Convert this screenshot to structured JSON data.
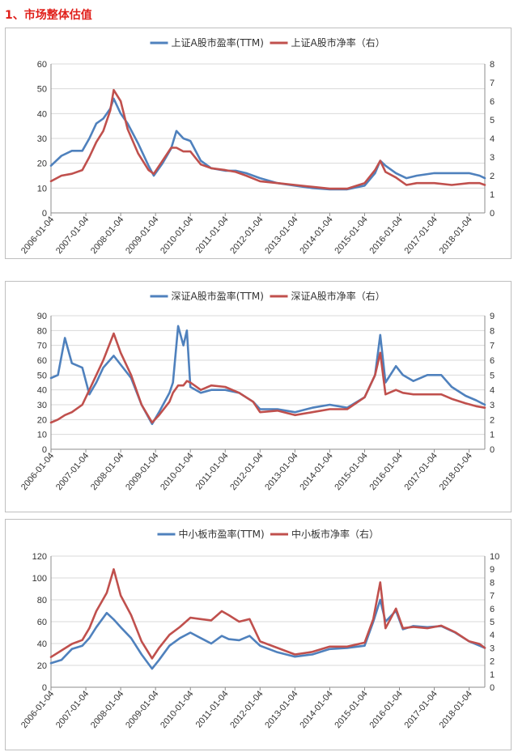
{
  "page": {
    "section_title": "1、市场整体估值"
  },
  "colors": {
    "pe": "#4f81bd",
    "pb": "#c0504d",
    "grid": "#d9d9d9",
    "title": "#e0201b"
  },
  "chart_data": [
    {
      "type": "line",
      "legend_placement": "top",
      "grid": true,
      "x_tick_labels": [
        "2006-01-04",
        "2007-01-04",
        "2008-01-04",
        "2009-01-04",
        "2010-01-04",
        "2011-01-04",
        "2012-01-04",
        "2013-01-04",
        "2014-01-04",
        "2015-01-04",
        "2016-01-04",
        "2017-01-04",
        "2018-01-04"
      ],
      "xlim": [
        2006.0,
        2018.45
      ],
      "y_left": {
        "ylim": [
          0,
          60
        ],
        "ticks": [
          0,
          10,
          20,
          30,
          40,
          50,
          60
        ]
      },
      "y_right": {
        "ylim": [
          0,
          8
        ],
        "ticks": [
          0,
          1,
          2,
          3,
          4,
          5,
          6,
          7,
          8
        ]
      },
      "series": [
        {
          "name": "上证A股市盈率(TTM)",
          "axis": "left",
          "x": [
            2006.0,
            2006.3,
            2006.6,
            2006.9,
            2007.1,
            2007.3,
            2007.5,
            2007.7,
            2007.8,
            2008.0,
            2008.2,
            2008.5,
            2008.8,
            2008.95,
            2009.2,
            2009.45,
            2009.6,
            2009.8,
            2010.0,
            2010.3,
            2010.6,
            2011.0,
            2011.3,
            2011.6,
            2012.0,
            2012.5,
            2013.0,
            2013.5,
            2014.0,
            2014.5,
            2015.0,
            2015.3,
            2015.45,
            2015.6,
            2015.9,
            2016.2,
            2016.5,
            2017.0,
            2017.5,
            2018.0,
            2018.3,
            2018.45
          ],
          "y": [
            19,
            23,
            25,
            25,
            30,
            36,
            38,
            42,
            46,
            40,
            36,
            28,
            19,
            15,
            20,
            26,
            33,
            30,
            29,
            21,
            18,
            17,
            17,
            16,
            14,
            12,
            11,
            10,
            9.5,
            9.5,
            11,
            16,
            21,
            19,
            16,
            14,
            15,
            16,
            16,
            16,
            15,
            14
          ]
        },
        {
          "name": "上证A股市净率（右）",
          "axis": "right",
          "x": [
            2006.0,
            2006.3,
            2006.6,
            2006.9,
            2007.1,
            2007.3,
            2007.5,
            2007.7,
            2007.8,
            2008.0,
            2008.2,
            2008.5,
            2008.8,
            2008.95,
            2009.2,
            2009.45,
            2009.6,
            2009.8,
            2010.0,
            2010.3,
            2010.6,
            2011.0,
            2011.3,
            2011.6,
            2012.0,
            2012.5,
            2013.0,
            2013.5,
            2014.0,
            2014.5,
            2015.0,
            2015.3,
            2015.45,
            2015.6,
            2015.9,
            2016.2,
            2016.5,
            2017.0,
            2017.5,
            2018.0,
            2018.3,
            2018.45
          ],
          "y": [
            1.7,
            2.0,
            2.1,
            2.3,
            3.0,
            3.8,
            4.4,
            5.5,
            6.6,
            6.0,
            4.5,
            3.2,
            2.3,
            2.1,
            2.8,
            3.5,
            3.5,
            3.3,
            3.3,
            2.6,
            2.4,
            2.3,
            2.2,
            2.0,
            1.7,
            1.6,
            1.5,
            1.4,
            1.3,
            1.3,
            1.6,
            2.3,
            2.8,
            2.2,
            1.9,
            1.5,
            1.6,
            1.6,
            1.5,
            1.6,
            1.6,
            1.5
          ]
        }
      ]
    },
    {
      "type": "line",
      "legend_placement": "top",
      "grid": true,
      "x_tick_labels": [
        "2006-01-04",
        "2007-01-04",
        "2008-01-04",
        "2009-01-04",
        "2010-01-04",
        "2011-01-04",
        "2012-01-04",
        "2013-01-04",
        "2014-01-04",
        "2015-01-04",
        "2016-01-04",
        "2017-01-04",
        "2018-01-04"
      ],
      "xlim": [
        2006.0,
        2018.45
      ],
      "y_left": {
        "ylim": [
          0,
          90
        ],
        "ticks": [
          0,
          10,
          20,
          30,
          40,
          50,
          60,
          70,
          80,
          90
        ]
      },
      "y_right": {
        "ylim": [
          0,
          9
        ],
        "ticks": [
          0,
          1,
          2,
          3,
          4,
          5,
          6,
          7,
          8,
          9
        ]
      },
      "series": [
        {
          "name": "深证A股市盈率(TTM)",
          "axis": "left",
          "x": [
            2006.0,
            2006.2,
            2006.4,
            2006.6,
            2006.9,
            2007.1,
            2007.3,
            2007.5,
            2007.8,
            2008.0,
            2008.3,
            2008.6,
            2008.9,
            2009.1,
            2009.4,
            2009.5,
            2009.65,
            2009.8,
            2009.9,
            2010.0,
            2010.3,
            2010.6,
            2011.0,
            2011.4,
            2011.8,
            2012.0,
            2012.5,
            2013.0,
            2013.5,
            2014.0,
            2014.5,
            2015.0,
            2015.3,
            2015.45,
            2015.6,
            2015.9,
            2016.1,
            2016.4,
            2016.8,
            2017.2,
            2017.5,
            2017.9,
            2018.2,
            2018.45
          ],
          "y": [
            48,
            50,
            75,
            58,
            55,
            37,
            45,
            55,
            63,
            57,
            48,
            30,
            17,
            25,
            38,
            45,
            83,
            70,
            80,
            42,
            38,
            40,
            40,
            38,
            32,
            27,
            27,
            25,
            28,
            30,
            28,
            35,
            50,
            77,
            45,
            56,
            50,
            46,
            50,
            50,
            42,
            36,
            33,
            30
          ]
        },
        {
          "name": "深证A股市净率（右）",
          "axis": "right",
          "x": [
            2006.0,
            2006.2,
            2006.4,
            2006.6,
            2006.9,
            2007.1,
            2007.3,
            2007.5,
            2007.8,
            2008.0,
            2008.3,
            2008.6,
            2008.9,
            2009.1,
            2009.4,
            2009.5,
            2009.65,
            2009.8,
            2009.9,
            2010.0,
            2010.3,
            2010.6,
            2011.0,
            2011.4,
            2011.8,
            2012.0,
            2012.5,
            2013.0,
            2013.5,
            2014.0,
            2014.5,
            2015.0,
            2015.3,
            2015.45,
            2015.6,
            2015.9,
            2016.1,
            2016.4,
            2016.8,
            2017.2,
            2017.5,
            2017.9,
            2018.2,
            2018.45
          ],
          "y": [
            1.8,
            2.0,
            2.3,
            2.5,
            3.0,
            4.0,
            5.0,
            6.0,
            7.8,
            6.5,
            5.0,
            3.0,
            1.8,
            2.3,
            3.2,
            3.8,
            4.3,
            4.3,
            4.6,
            4.5,
            4.0,
            4.3,
            4.2,
            3.8,
            3.2,
            2.5,
            2.6,
            2.3,
            2.5,
            2.7,
            2.7,
            3.5,
            5.0,
            6.5,
            3.7,
            4.0,
            3.8,
            3.7,
            3.7,
            3.7,
            3.4,
            3.1,
            2.9,
            2.8
          ]
        }
      ]
    },
    {
      "type": "line",
      "legend_placement": "top",
      "grid": true,
      "x_tick_labels": [
        "2006-01-04",
        "2007-01-04",
        "2008-01-04",
        "2009-01-04",
        "2010-01-04",
        "2011-01-04",
        "2012-01-04",
        "2013-01-04",
        "2014-01-04",
        "2015-01-04",
        "2016-01-04",
        "2017-01-04",
        "2018-01-04"
      ],
      "xlim": [
        2006.0,
        2018.45
      ],
      "y_left": {
        "ylim": [
          0,
          120
        ],
        "ticks": [
          0,
          20,
          40,
          60,
          80,
          100,
          120
        ]
      },
      "y_right": {
        "ylim": [
          0,
          10
        ],
        "ticks": [
          0,
          1,
          2,
          3,
          4,
          5,
          6,
          7,
          8,
          9,
          10
        ]
      },
      "series": [
        {
          "name": "中小板市盈率(TTM)",
          "axis": "left",
          "x": [
            2006.0,
            2006.3,
            2006.6,
            2006.9,
            2007.1,
            2007.3,
            2007.6,
            2007.8,
            2008.0,
            2008.3,
            2008.6,
            2008.9,
            2009.1,
            2009.4,
            2009.7,
            2010.0,
            2010.3,
            2010.6,
            2010.9,
            2011.1,
            2011.4,
            2011.7,
            2012.0,
            2012.5,
            2013.0,
            2013.5,
            2014.0,
            2014.5,
            2015.0,
            2015.25,
            2015.45,
            2015.6,
            2015.9,
            2016.1,
            2016.4,
            2016.8,
            2017.2,
            2017.6,
            2018.0,
            2018.3,
            2018.45
          ],
          "y": [
            22,
            25,
            35,
            38,
            45,
            55,
            68,
            62,
            55,
            45,
            30,
            17,
            25,
            38,
            45,
            50,
            45,
            40,
            47,
            44,
            43,
            47,
            38,
            32,
            28,
            30,
            35,
            36,
            38,
            60,
            80,
            60,
            70,
            53,
            56,
            55,
            56,
            50,
            42,
            38,
            36
          ]
        },
        {
          "name": "中小板市净率（右）",
          "axis": "right",
          "x": [
            2006.0,
            2006.3,
            2006.6,
            2006.9,
            2007.1,
            2007.3,
            2007.6,
            2007.8,
            2008.0,
            2008.3,
            2008.6,
            2008.9,
            2009.1,
            2009.4,
            2009.7,
            2010.0,
            2010.3,
            2010.6,
            2010.9,
            2011.1,
            2011.4,
            2011.7,
            2012.0,
            2012.5,
            2013.0,
            2013.5,
            2014.0,
            2014.5,
            2015.0,
            2015.25,
            2015.45,
            2015.6,
            2015.9,
            2016.1,
            2016.4,
            2016.8,
            2017.2,
            2017.6,
            2018.0,
            2018.3,
            2018.45
          ],
          "y": [
            2.3,
            2.8,
            3.3,
            3.6,
            4.5,
            5.8,
            7.2,
            9.0,
            7.0,
            5.5,
            3.5,
            2.2,
            3.0,
            4.0,
            4.6,
            5.3,
            5.2,
            5.1,
            5.8,
            5.5,
            5.0,
            5.2,
            3.5,
            3.0,
            2.5,
            2.7,
            3.1,
            3.1,
            3.4,
            5.2,
            8.0,
            4.5,
            6.0,
            4.5,
            4.6,
            4.5,
            4.7,
            4.2,
            3.5,
            3.3,
            3.0
          ]
        }
      ]
    }
  ]
}
